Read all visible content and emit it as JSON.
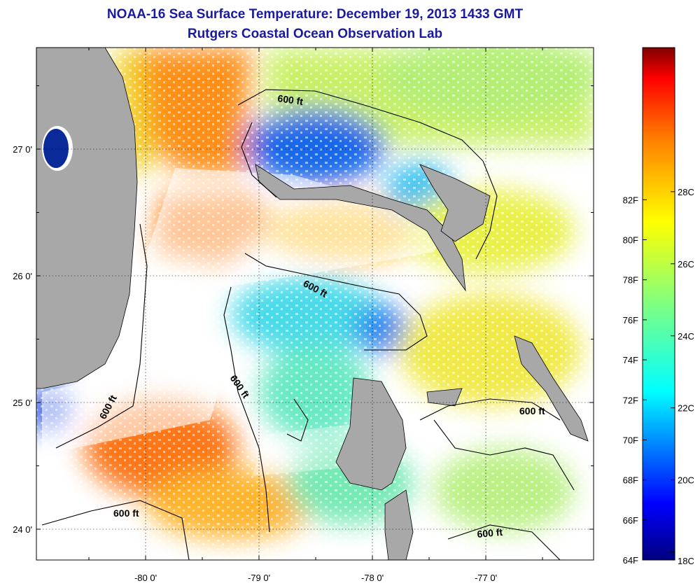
{
  "title": "NOAA-16 Sea Surface Temperature:  December 19, 2013 1433 GMT",
  "subtitle": "Rutgers Coastal Ocean Observation Lab",
  "lon_ticks": [
    {
      "value": -80,
      "label": "-80 0'"
    },
    {
      "value": -79,
      "label": "-79 0'"
    },
    {
      "value": -78,
      "label": "-78 0'"
    },
    {
      "value": -77,
      "label": "-77 0'"
    }
  ],
  "lat_ticks": [
    {
      "value": 27,
      "label": "27 0'"
    },
    {
      "value": 26,
      "label": "26 0'"
    },
    {
      "value": 25,
      "label": "25 0'"
    },
    {
      "value": 24,
      "label": "24 0'"
    }
  ],
  "contour_labels": [
    "600 ft",
    "600 ft",
    "600 ft",
    "600 ft",
    "600 ft",
    "600 ft"
  ],
  "colorbar": {
    "fahrenheit_labels": [
      "82F",
      "80F",
      "78F",
      "76F",
      "74F",
      "72F",
      "70F",
      "68F",
      "66F",
      "64F"
    ],
    "celsius_labels": [
      "28C",
      "26C",
      "24C",
      "22C",
      "20C",
      "18C"
    ],
    "colors": [
      "#7f0000",
      "#ff0000",
      "#ff8000",
      "#ffff00",
      "#80ff80",
      "#00ffff",
      "#0080ff",
      "#0000ff",
      "#00007f"
    ]
  },
  "colors": {
    "title": "#1a1aa0",
    "land": "#a8a8a8",
    "cloud": "#ffffff"
  }
}
